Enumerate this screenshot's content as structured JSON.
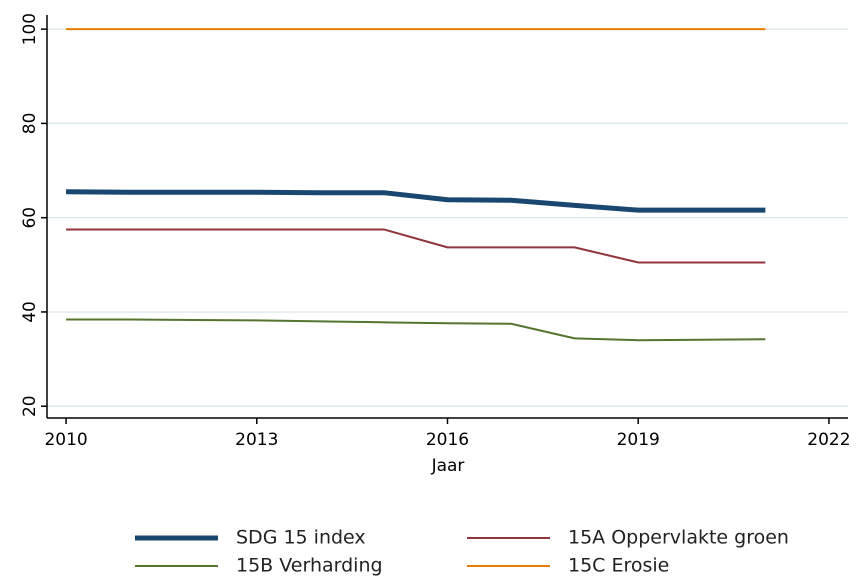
{
  "chart_data": {
    "type": "line",
    "x_label": "Jaar",
    "x": [
      2010,
      2011,
      2012,
      2013,
      2014,
      2015,
      2016,
      2017,
      2018,
      2019,
      2020,
      2021
    ],
    "series": [
      {
        "name": "SDG 15 index",
        "color": "#1a476f",
        "line_width": 5,
        "values": [
          65.5,
          65.4,
          65.4,
          65.4,
          65.3,
          65.3,
          63.8,
          63.7,
          62.6,
          61.6,
          61.6,
          61.6
        ]
      },
      {
        "name": "15A Oppervlakte groen",
        "color": "#90353b",
        "line_width": 2,
        "values": [
          57.5,
          57.5,
          57.5,
          57.5,
          57.5,
          57.5,
          53.7,
          53.7,
          53.7,
          50.5,
          50.5,
          50.5
        ]
      },
      {
        "name": "15B Verharding",
        "color": "#55752f",
        "line_width": 2,
        "values": [
          38.4,
          38.4,
          38.3,
          38.2,
          38.0,
          37.8,
          37.6,
          37.5,
          34.4,
          34.0,
          34.1,
          34.2
        ]
      },
      {
        "name": "15C Erosie",
        "color": "#e37e00",
        "line_width": 2,
        "values": [
          100,
          100,
          100,
          100,
          100,
          100,
          100,
          100,
          100,
          100,
          100,
          100
        ]
      }
    ],
    "xlim": [
      2009.7,
      2022.3
    ],
    "xticks": [
      2010,
      2013,
      2016,
      2019,
      2022
    ],
    "ylim": [
      17.5,
      103
    ],
    "yticks": [
      20,
      40,
      60,
      80,
      100
    ],
    "grid": true
  }
}
